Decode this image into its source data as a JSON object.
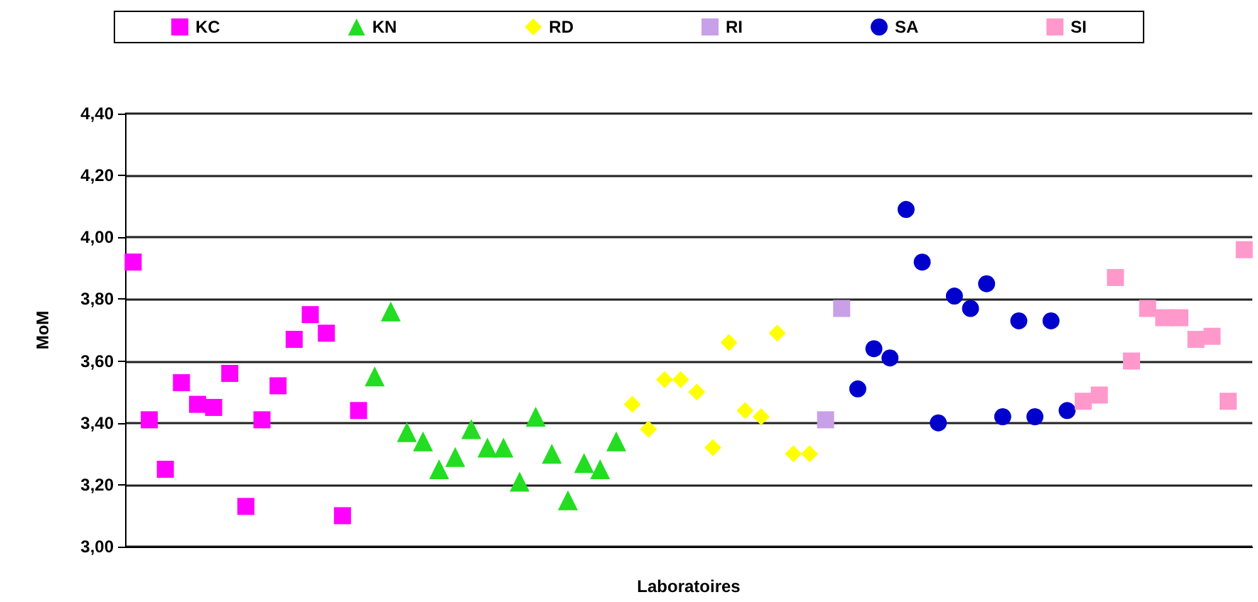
{
  "chart_data": {
    "type": "scatter",
    "xlabel": "Laboratoires",
    "ylabel": "MoM",
    "categories": [
      null,
      null,
      null,
      null,
      null,
      null,
      null,
      null,
      null,
      null,
      null,
      null,
      null,
      null,
      null,
      null,
      null,
      null,
      null,
      null,
      null,
      null,
      null,
      null,
      null,
      null,
      null,
      null,
      null,
      null,
      null,
      null,
      null,
      null,
      null,
      null,
      null,
      null,
      null,
      null,
      null,
      null,
      null,
      null,
      null,
      null,
      null,
      null,
      null,
      null,
      null,
      null,
      null,
      null,
      null,
      null,
      null,
      null,
      null,
      null,
      null,
      null,
      null,
      null,
      null,
      null,
      null,
      null,
      null,
      null
    ],
    "series": [
      {
        "name": "KC",
        "color": "#ff00ff",
        "marker": "square",
        "values": [
          3.92,
          3.41,
          3.25,
          3.53,
          3.46,
          3.45,
          3.56,
          3.13,
          3.41,
          3.52,
          3.67,
          3.75,
          3.69,
          3.1,
          3.44,
          null,
          null,
          null,
          null,
          null,
          null,
          null,
          null,
          null,
          null,
          null,
          null,
          null,
          null,
          null,
          null,
          null,
          null,
          null,
          null,
          null,
          null,
          null,
          null,
          null,
          null,
          null,
          null,
          null,
          null,
          null,
          null,
          null,
          null,
          null,
          null,
          null,
          null,
          null,
          null,
          null,
          null,
          null,
          null,
          null,
          null,
          null,
          null,
          null,
          null,
          null,
          null,
          null,
          null,
          null
        ]
      },
      {
        "name": "KN",
        "color": "#22dd22",
        "marker": "triangle",
        "values": [
          null,
          null,
          null,
          null,
          null,
          null,
          null,
          null,
          null,
          null,
          null,
          null,
          null,
          null,
          null,
          3.55,
          3.76,
          3.37,
          3.34,
          3.25,
          3.29,
          3.38,
          3.32,
          3.32,
          3.21,
          3.42,
          3.3,
          3.15,
          3.27,
          3.25,
          3.34,
          null,
          null,
          null,
          null,
          null,
          null,
          null,
          null,
          null,
          null,
          null,
          null,
          null,
          null,
          null,
          null,
          null,
          null,
          null,
          null,
          null,
          null,
          null,
          null,
          null,
          null,
          null,
          null,
          null,
          null,
          null,
          null,
          null,
          null,
          null,
          null,
          null,
          null,
          null
        ]
      },
      {
        "name": "RD",
        "color": "#ffff00",
        "marker": "diamond",
        "values": [
          null,
          null,
          null,
          null,
          null,
          null,
          null,
          null,
          null,
          null,
          null,
          null,
          null,
          null,
          null,
          null,
          null,
          null,
          null,
          null,
          null,
          null,
          null,
          null,
          null,
          null,
          null,
          null,
          null,
          null,
          null,
          3.46,
          3.38,
          3.54,
          3.54,
          3.5,
          3.32,
          3.66,
          3.44,
          3.42,
          3.69,
          3.3,
          3.3,
          null,
          null,
          null,
          null,
          null,
          null,
          null,
          null,
          null,
          null,
          null,
          null,
          null,
          null,
          null,
          null,
          null,
          null,
          null,
          null,
          null,
          null,
          null,
          null,
          null,
          null,
          null
        ]
      },
      {
        "name": "RI",
        "color": "#c8a0e8",
        "marker": "square",
        "values": [
          null,
          null,
          null,
          null,
          null,
          null,
          null,
          null,
          null,
          null,
          null,
          null,
          null,
          null,
          null,
          null,
          null,
          null,
          null,
          null,
          null,
          null,
          null,
          null,
          null,
          null,
          null,
          null,
          null,
          null,
          null,
          null,
          null,
          null,
          null,
          null,
          null,
          null,
          null,
          null,
          null,
          null,
          null,
          3.41,
          3.77,
          null,
          null,
          null,
          null,
          null,
          null,
          null,
          null,
          null,
          null,
          null,
          null,
          null,
          null,
          null,
          null,
          null,
          null,
          null,
          null,
          null,
          null,
          null,
          null,
          null
        ]
      },
      {
        "name": "SA",
        "color": "#0000cc",
        "marker": "circle",
        "values": [
          null,
          null,
          null,
          null,
          null,
          null,
          null,
          null,
          null,
          null,
          null,
          null,
          null,
          null,
          null,
          null,
          null,
          null,
          null,
          null,
          null,
          null,
          null,
          null,
          null,
          null,
          null,
          null,
          null,
          null,
          null,
          null,
          null,
          null,
          null,
          null,
          null,
          null,
          null,
          null,
          null,
          null,
          null,
          null,
          null,
          3.51,
          3.64,
          3.61,
          4.09,
          3.92,
          3.4,
          3.81,
          3.77,
          3.85,
          3.42,
          3.73,
          3.42,
          3.73,
          3.44,
          null,
          null,
          null,
          null,
          null,
          null,
          null,
          null,
          null,
          null,
          null
        ]
      },
      {
        "name": "SI",
        "color": "#ff99cc",
        "marker": "square",
        "values": [
          null,
          null,
          null,
          null,
          null,
          null,
          null,
          null,
          null,
          null,
          null,
          null,
          null,
          null,
          null,
          null,
          null,
          null,
          null,
          null,
          null,
          null,
          null,
          null,
          null,
          null,
          null,
          null,
          null,
          null,
          null,
          null,
          null,
          null,
          null,
          null,
          null,
          null,
          null,
          null,
          null,
          null,
          null,
          null,
          null,
          null,
          null,
          null,
          null,
          null,
          null,
          null,
          null,
          null,
          null,
          null,
          null,
          null,
          null,
          3.47,
          3.49,
          3.87,
          3.6,
          3.77,
          3.74,
          3.74,
          3.67,
          3.68,
          3.47,
          3.96
        ]
      }
    ],
    "ylim": [
      3.0,
      4.4
    ],
    "yticks": [
      {
        "value": 3.0,
        "label": "3,00"
      },
      {
        "value": 3.2,
        "label": "3,20"
      },
      {
        "value": 3.4,
        "label": "3,40"
      },
      {
        "value": 3.6,
        "label": "3,60"
      },
      {
        "value": 3.8,
        "label": "3,80"
      },
      {
        "value": 4.0,
        "label": "4,00"
      },
      {
        "value": 4.2,
        "label": "4,20"
      },
      {
        "value": 4.4,
        "label": "4,40"
      }
    ],
    "grid": "y",
    "legend": "top",
    "tick_labels": "y"
  }
}
